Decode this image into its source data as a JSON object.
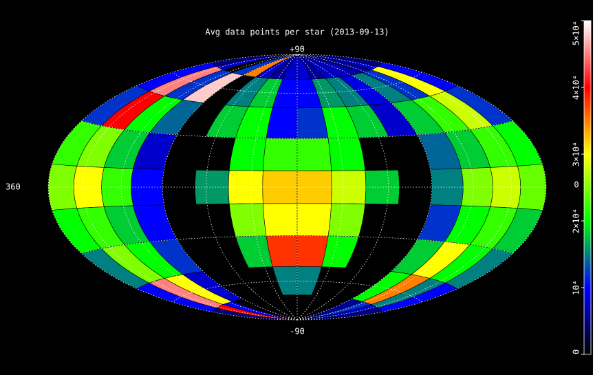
{
  "chart_data": {
    "type": "skymap",
    "title": "Avg data points per star (2013-09-13)",
    "lat_labels": [
      "+90",
      "-90"
    ],
    "lon_labels": [
      "360",
      "0"
    ],
    "colormap": [
      "#000000",
      "#0000ff",
      "#00ff00",
      "#ffff00",
      "#ff0000",
      "#ffffff"
    ],
    "clim": [
      0,
      50000
    ],
    "cticks": [
      0,
      {
        "value": 10000,
        "label": "10⁴"
      },
      {
        "value": 20000,
        "label": "2×10⁴"
      },
      {
        "value": 30000,
        "label": "3×10⁴"
      },
      {
        "value": 40000,
        "label": "4×10⁴"
      },
      {
        "value": 50000,
        "label": "5×10⁴"
      }
    ],
    "cells": [
      [
        5000,
        8000,
        null,
        12000,
        35000,
        8000,
        6000,
        8000,
        8000,
        6000,
        8000,
        8000,
        7000,
        6000,
        8000,
        5000
      ],
      [
        10000,
        45000,
        12000,
        48000,
        null,
        15000,
        18000,
        10000,
        10000,
        16000,
        15000,
        9000,
        15000,
        12000,
        30000,
        10000
      ],
      [
        12000,
        40000,
        20000,
        14000,
        null,
        18000,
        20000,
        10000,
        12000,
        20000,
        18000,
        8000,
        18000,
        22000,
        28000,
        12000
      ],
      [
        22000,
        25000,
        18000,
        8000,
        null,
        null,
        20000,
        22000,
        22000,
        20000,
        null,
        null,
        14000,
        18000,
        22000,
        20000
      ],
      [
        25000,
        30000,
        22000,
        10000,
        null,
        16000,
        30000,
        32000,
        32000,
        28000,
        18000,
        null,
        15000,
        25000,
        28000,
        24000
      ],
      [
        20000,
        22000,
        18000,
        10000,
        null,
        null,
        25000,
        30000,
        30000,
        25000,
        null,
        null,
        12000,
        20000,
        22000,
        18000
      ],
      [
        15000,
        25000,
        20000,
        12000,
        null,
        null,
        18000,
        38000,
        38000,
        20000,
        null,
        null,
        18000,
        30000,
        20000,
        15000
      ],
      [
        10000,
        45000,
        30000,
        8000,
        null,
        null,
        null,
        15000,
        15000,
        null,
        null,
        null,
        20000,
        35000,
        15000,
        10000
      ],
      [
        5000,
        40000,
        10000,
        null,
        null,
        null,
        null,
        null,
        null,
        null,
        null,
        null,
        6000,
        12000,
        8000,
        5000
      ]
    ]
  }
}
